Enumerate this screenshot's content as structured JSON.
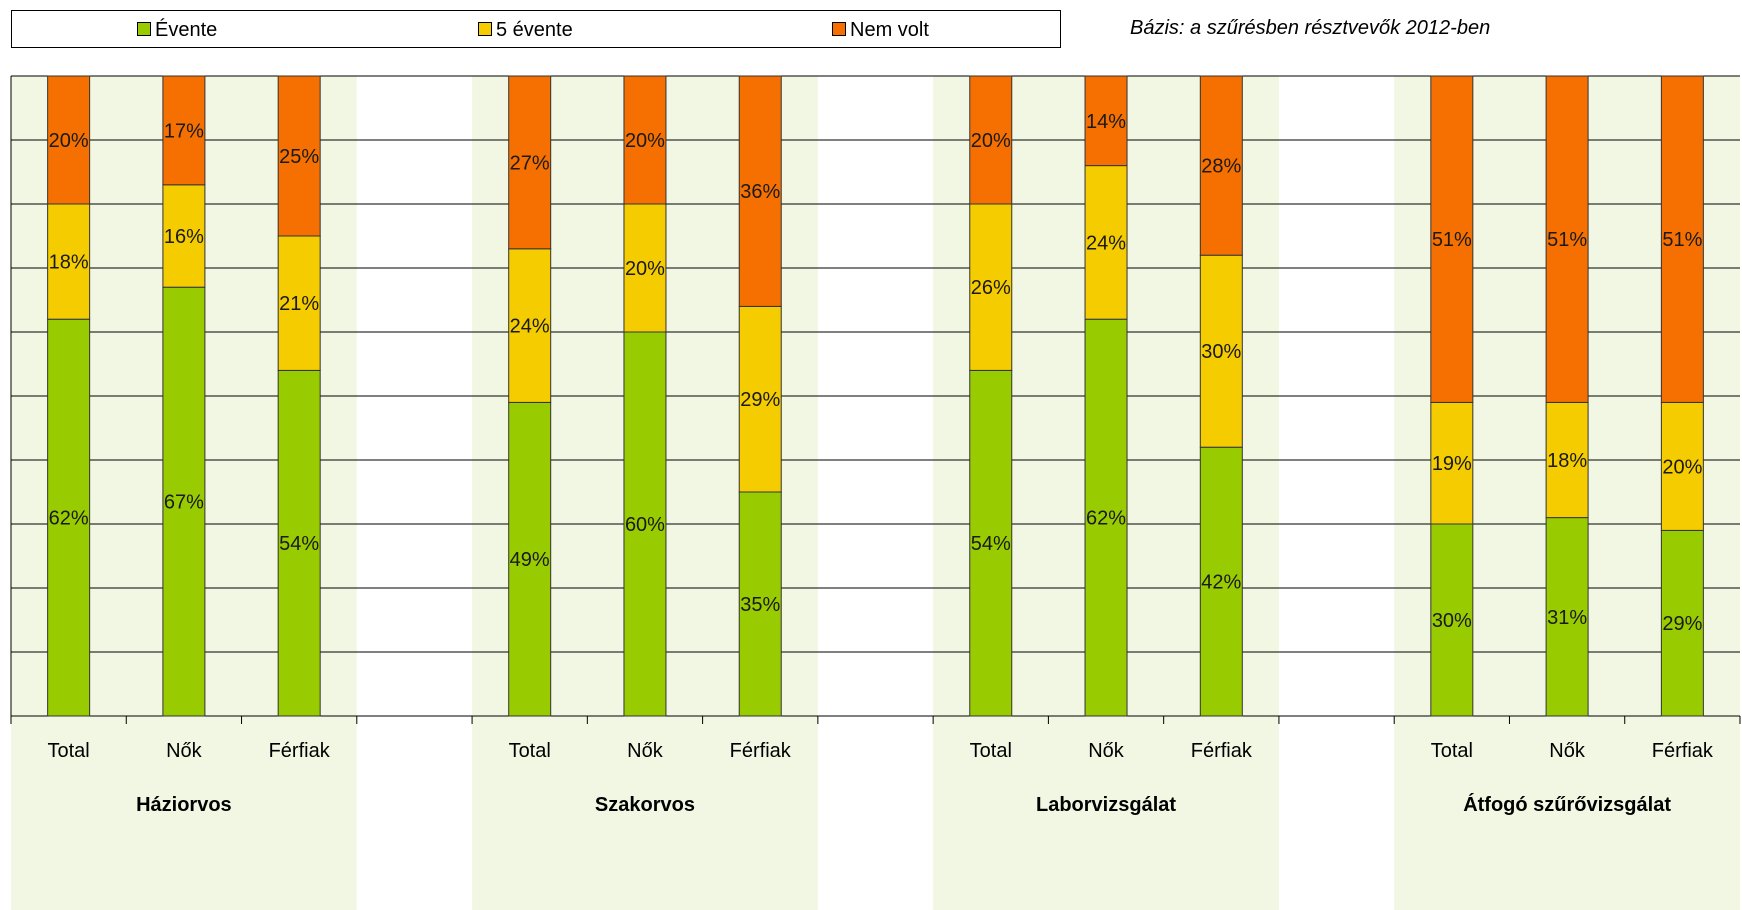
{
  "legend": {
    "items": [
      {
        "label": "Évente",
        "color": "#99cc00"
      },
      {
        "label": "5 évente",
        "color": "#f5cc00"
      },
      {
        "label": "Nem volt",
        "color": "#f57000"
      }
    ]
  },
  "base_note": "Bázis: a szűrésben résztvevők 2012-ben",
  "chart_data": {
    "type": "bar",
    "stacked": true,
    "percent": true,
    "ylim": [
      0,
      100
    ],
    "grid": true,
    "legend_position": "top",
    "groups": [
      {
        "name": "Háziorvos",
        "categories": [
          "Total",
          "Nők",
          "Férfiak"
        ]
      },
      {
        "name": "Szakorvos",
        "categories": [
          "Total",
          "Nők",
          "Férfiak"
        ]
      },
      {
        "name": "Laborvizsgálat",
        "categories": [
          "Total",
          "Nők",
          "Férfiak"
        ]
      },
      {
        "name": "Átfogó szűrővizsgálat",
        "categories": [
          "Total",
          "Nők",
          "Férfiak"
        ]
      }
    ],
    "series": [
      {
        "name": "Évente",
        "color": "#99cc00",
        "values": [
          62,
          67,
          54,
          49,
          60,
          35,
          54,
          62,
          42,
          30,
          31,
          29
        ]
      },
      {
        "name": "5 évente",
        "color": "#f5cc00",
        "values": [
          18,
          16,
          21,
          24,
          20,
          29,
          26,
          24,
          30,
          19,
          18,
          20
        ]
      },
      {
        "name": "Nem volt",
        "color": "#f57000",
        "values": [
          20,
          17,
          25,
          27,
          20,
          36,
          20,
          14,
          28,
          51,
          51,
          51
        ]
      }
    ]
  }
}
